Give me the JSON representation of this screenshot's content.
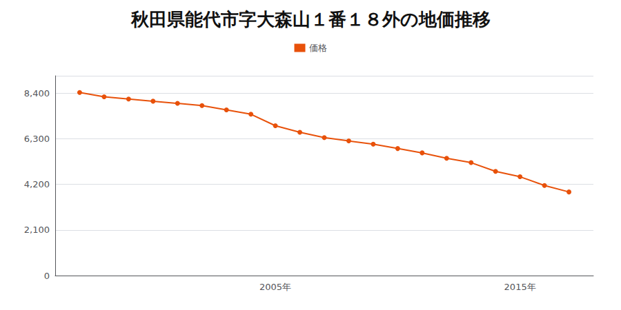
{
  "chart_data": {
    "type": "line",
    "title": "秋田県能代市字大森山１番１８外の地価推移",
    "x": [
      1997,
      1998,
      1999,
      2000,
      2001,
      2002,
      2003,
      2004,
      2005,
      2006,
      2007,
      2008,
      2009,
      2010,
      2011,
      2012,
      2013,
      2014,
      2015,
      2016,
      2017
    ],
    "series": [
      {
        "name": "価格",
        "color": "#E8510A",
        "marker": "circle",
        "values": [
          8430,
          8230,
          8130,
          8030,
          7930,
          7830,
          7630,
          7430,
          6900,
          6600,
          6350,
          6200,
          6050,
          5850,
          5650,
          5400,
          5200,
          4800,
          4550,
          4150,
          3850
        ]
      }
    ],
    "xlim": [
      1996,
      2018
    ],
    "xticks": [
      {
        "value": 2005,
        "label": "2005年"
      },
      {
        "value": 2015,
        "label": "2015年"
      }
    ],
    "ylim": [
      0,
      9200
    ],
    "yticks": [
      0,
      {
        "value": 2100,
        "label": "2,100"
      },
      {
        "value": 4200,
        "label": "4,200"
      },
      {
        "value": 6300,
        "label": "6,300"
      },
      {
        "value": 8400,
        "label": "8,400"
      }
    ],
    "grid": true,
    "legend": "top"
  }
}
